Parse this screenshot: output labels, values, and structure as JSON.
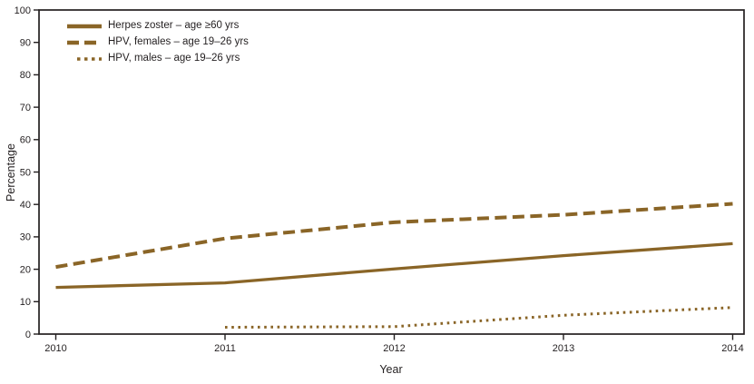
{
  "chart_data": {
    "type": "line",
    "title": "",
    "x": [
      2010,
      2011,
      2012,
      2013,
      2014
    ],
    "series": [
      {
        "name": "Herpes zoster – age ≥60 yrs",
        "style": "solid",
        "values": [
          14.4,
          15.8,
          20.1,
          24.2,
          27.9
        ]
      },
      {
        "name": "HPV, females – age 19–26 yrs",
        "style": "dashed",
        "values": [
          20.7,
          29.5,
          34.5,
          36.8,
          40.2
        ]
      },
      {
        "name": "HPV, males – age 19–26 yrs",
        "style": "dotted",
        "values": [
          null,
          2.1,
          2.3,
          5.8,
          8.2
        ]
      }
    ],
    "xlabel": "Year",
    "ylabel": "Percentage",
    "ylim": [
      0,
      100
    ],
    "ytick_step": 10,
    "grid": false,
    "legend_position": "top-left",
    "line_color": "#8a6527",
    "frame_color": "#231f20"
  }
}
